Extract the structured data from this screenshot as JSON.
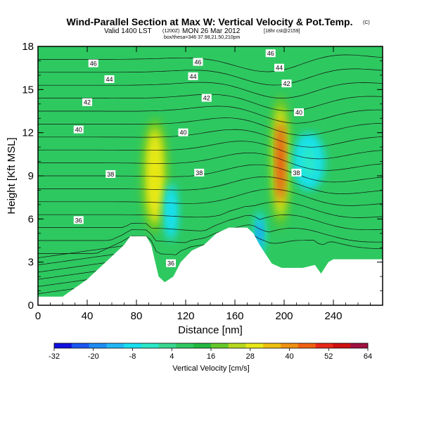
{
  "chart_data": {
    "type": "heatmap",
    "title": "Wind-Parallel Section at Max W: Vertical Velocity & Pot.Temp.",
    "title_mark": "(C)",
    "subtitle": "Valid 1400 LST",
    "subtitle_utc": "(1200Z)",
    "subtitle_date": "MON 26 Mar 2012",
    "subtitle_fcst": "[18hr cst@2159]",
    "subtitle2": "box/thesa=346 37.98,21.50,210pm",
    "xlabel": "Distance [nm]",
    "ylabel": "Height [Kft MSL]",
    "xlim": [
      0,
      280
    ],
    "ylim": [
      0,
      18
    ],
    "xticks": [
      0,
      40,
      80,
      120,
      160,
      200,
      240
    ],
    "yticks": [
      0,
      3,
      6,
      9,
      12,
      15,
      18
    ],
    "colorbar": {
      "label": "Vertical Velocity [cm/s]",
      "tick_labels": [
        "-32",
        "-20",
        "-8",
        "4",
        "16",
        "28",
        "40",
        "52",
        "64"
      ],
      "colors": [
        "#1010e0",
        "#1a55f0",
        "#1e8cf5",
        "#22b8f5",
        "#18e0f0",
        "#2ae8c8",
        "#38d890",
        "#2ec860",
        "#22b840",
        "#66c828",
        "#b8d820",
        "#e8e818",
        "#f0c010",
        "#f09010",
        "#f06010",
        "#e82818",
        "#d01010",
        "#a01040"
      ]
    },
    "terrain": [
      [
        0,
        0.6
      ],
      [
        20,
        0.6
      ],
      [
        30,
        1.2
      ],
      [
        40,
        1.8
      ],
      [
        50,
        2.6
      ],
      [
        60,
        3.4
      ],
      [
        70,
        4.2
      ],
      [
        75,
        4.8
      ],
      [
        88,
        4.8
      ],
      [
        92,
        4.2
      ],
      [
        98,
        2.0
      ],
      [
        103,
        1.6
      ],
      [
        110,
        2.0
      ],
      [
        116,
        3.0
      ],
      [
        125,
        3.8
      ],
      [
        135,
        4.2
      ],
      [
        145,
        5.0
      ],
      [
        155,
        5.4
      ],
      [
        170,
        5.4
      ],
      [
        175,
        5.0
      ],
      [
        180,
        4.2
      ],
      [
        190,
        2.9
      ],
      [
        198,
        2.6
      ],
      [
        215,
        2.6
      ],
      [
        225,
        2.8
      ],
      [
        230,
        2.2
      ],
      [
        236,
        3.0
      ],
      [
        240,
        3.2
      ],
      [
        280,
        3.2
      ]
    ],
    "contour_levels": [
      "36",
      "38",
      "40",
      "42",
      "44",
      "46"
    ],
    "contour_labels": [
      {
        "text": "46",
        "x": 45,
        "y": 16.8
      },
      {
        "text": "44",
        "x": 58,
        "y": 15.7
      },
      {
        "text": "42",
        "x": 40,
        "y": 14.1
      },
      {
        "text": "40",
        "x": 33,
        "y": 12.2
      },
      {
        "text": "38",
        "x": 59,
        "y": 9.1
      },
      {
        "text": "36",
        "x": 33,
        "y": 5.9
      },
      {
        "text": "46",
        "x": 130,
        "y": 16.9
      },
      {
        "text": "44",
        "x": 126,
        "y": 15.9
      },
      {
        "text": "42",
        "x": 137,
        "y": 14.4
      },
      {
        "text": "40",
        "x": 118,
        "y": 12.0
      },
      {
        "text": "38",
        "x": 131,
        "y": 9.2
      },
      {
        "text": "36",
        "x": 108,
        "y": 2.9
      },
      {
        "text": "46",
        "x": 189,
        "y": 17.5
      },
      {
        "text": "44",
        "x": 196,
        "y": 16.5
      },
      {
        "text": "42",
        "x": 202,
        "y": 15.4
      },
      {
        "text": "40",
        "x": 212,
        "y": 13.4
      },
      {
        "text": "38",
        "x": 210,
        "y": 9.2
      }
    ],
    "velocity_features": [
      {
        "label": "updraft",
        "x": 95,
        "y": 9.0,
        "w": 14,
        "h": 7,
        "level": 32
      },
      {
        "label": "updraft",
        "x": 197,
        "y": 10.0,
        "w": 11,
        "h": 8,
        "level": 52
      },
      {
        "label": "downdraft",
        "x": 180,
        "y": 5.0,
        "w": 7,
        "h": 3,
        "level": -20
      },
      {
        "label": "downdraft",
        "x": 108,
        "y": 6.5,
        "w": 9,
        "h": 4,
        "level": -8
      },
      {
        "label": "downdraft",
        "x": 220,
        "y": 10.0,
        "w": 20,
        "h": 4,
        "level": -6
      }
    ]
  }
}
